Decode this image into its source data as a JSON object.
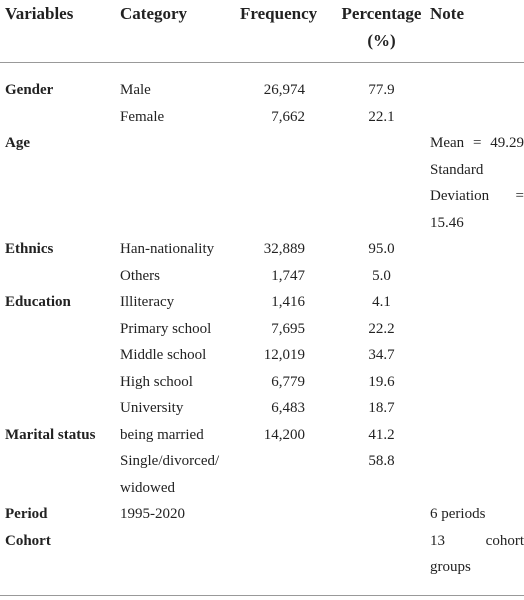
{
  "header": {
    "variable": "Variables",
    "category": "Category",
    "frequency": "Frequency",
    "percentage": "Percentage (%)",
    "note": "Note"
  },
  "table": {
    "rows": [
      {
        "variable": "Gender",
        "category": "Male",
        "frequency": "26,974",
        "percentage": "77.9"
      },
      {
        "category": "Female",
        "frequency": "7,662",
        "percentage": "22.1"
      },
      {
        "variable": "Age",
        "note": "Mean = 49.29 Standard Deviation = 15.46"
      },
      {
        "variable": "Ethnics",
        "category": "Han-nationality",
        "frequency": "32,889",
        "percentage": "95.0"
      },
      {
        "category": "Others",
        "frequency": "1,747",
        "percentage": "5.0"
      },
      {
        "variable": "Education",
        "category": "Illiteracy",
        "frequency": "1,416",
        "percentage": "4.1"
      },
      {
        "category": "Primary school",
        "frequency": "7,695",
        "percentage": "22.2"
      },
      {
        "category": "Middle school",
        "frequency": "12,019",
        "percentage": "34.7"
      },
      {
        "category": "High school",
        "frequency": "6,779",
        "percentage": "19.6"
      },
      {
        "category": "University",
        "frequency": "6,483",
        "percentage": "18.7"
      },
      {
        "variable": "Marital status",
        "category": "being married",
        "frequency": "14,200",
        "percentage": "41.2"
      },
      {
        "category": "Single/divorced/ widowed",
        "percentage": "58.8"
      },
      {
        "variable": "Period",
        "category": "1995-2020",
        "note": "6 periods"
      },
      {
        "variable": "Cohort",
        "note": "13 cohort groups"
      }
    ]
  }
}
